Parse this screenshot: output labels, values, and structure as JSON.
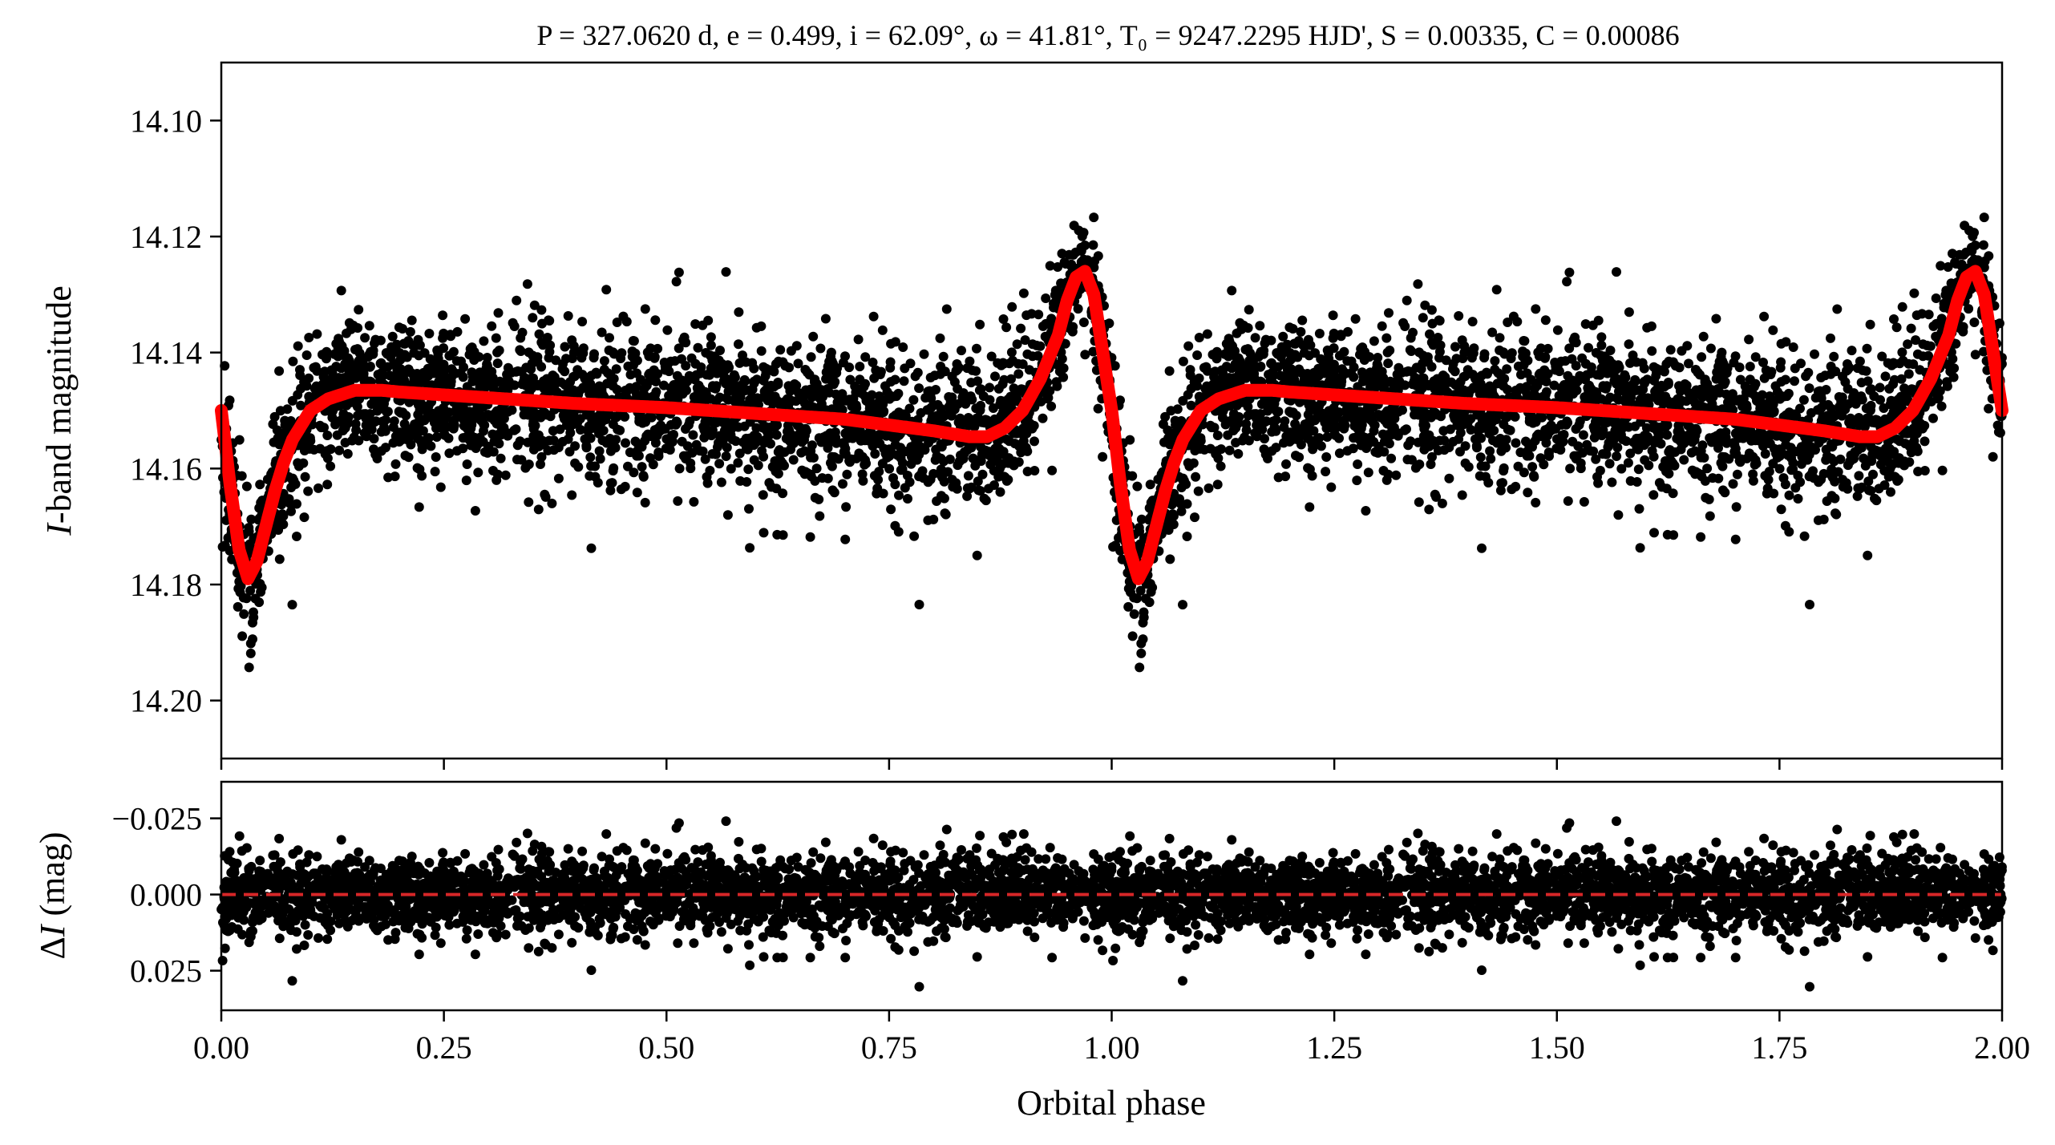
{
  "chart_data": [
    {
      "type": "scatter",
      "panel": "top",
      "title": "P = 327.0620 d, e = 0.499, i = 62.09°, ω = 41.81°, T₀ = 9247.2295 HJD', S = 0.00335, C = 0.00086",
      "xlabel": "",
      "ylabel": "I-band magnitude",
      "xlim": [
        0.0,
        2.0
      ],
      "ylim": [
        14.21,
        14.09
      ],
      "y_inverted": true,
      "yticks": [
        "14.10",
        "14.12",
        "14.14",
        "14.16",
        "14.18",
        "14.20"
      ],
      "ytick_values": [
        14.1,
        14.12,
        14.14,
        14.16,
        14.18,
        14.2
      ],
      "xticks_values": [
        0.0,
        0.25,
        0.5,
        0.75,
        1.0,
        1.25,
        1.5,
        1.75,
        2.0
      ],
      "grid": false,
      "series": [
        {
          "kind": "points",
          "color": "#000000",
          "x": [
            0.0,
            0.01,
            0.02,
            0.03,
            0.04,
            0.05,
            0.07,
            0.1,
            0.15,
            0.2,
            0.3,
            0.4,
            0.5,
            0.6,
            0.7,
            0.8,
            0.86,
            0.9,
            0.93,
            0.95,
            0.96,
            0.97,
            0.98,
            0.99,
            1.0
          ],
          "y": [
            14.15,
            14.163,
            14.175,
            14.181,
            14.178,
            14.17,
            14.16,
            14.152,
            14.147,
            14.147,
            14.148,
            14.149,
            14.149,
            14.15,
            14.151,
            14.153,
            14.154,
            14.15,
            14.142,
            14.133,
            14.128,
            14.126,
            14.13,
            14.138,
            14.15
          ],
          "scatter_sigma": 0.0065
        },
        {
          "kind": "model",
          "color": "#ff0000",
          "x": [
            0.0,
            0.01,
            0.02,
            0.03,
            0.04,
            0.05,
            0.06,
            0.07,
            0.08,
            0.1,
            0.12,
            0.15,
            0.18,
            0.2,
            0.3,
            0.4,
            0.5,
            0.6,
            0.7,
            0.8,
            0.84,
            0.86,
            0.88,
            0.9,
            0.92,
            0.94,
            0.95,
            0.96,
            0.97,
            0.98,
            0.99,
            1.0
          ],
          "y": [
            14.15,
            14.163,
            14.174,
            14.179,
            14.176,
            14.17,
            14.164,
            14.159,
            14.155,
            14.15,
            14.148,
            14.1465,
            14.1465,
            14.1468,
            14.1478,
            14.1488,
            14.1495,
            14.1505,
            14.1515,
            14.1535,
            14.1545,
            14.1545,
            14.153,
            14.15,
            14.1445,
            14.137,
            14.131,
            14.127,
            14.126,
            14.13,
            14.14,
            14.15
          ]
        }
      ]
    },
    {
      "type": "scatter",
      "panel": "bottom",
      "title": "",
      "xlabel": "Orbital phase",
      "ylabel": "ΔI (mag)",
      "xlim": [
        0.0,
        2.0
      ],
      "ylim": [
        0.038,
        -0.037
      ],
      "y_inverted": true,
      "yticks": [
        "−0.025",
        "0.000",
        "0.025"
      ],
      "ytick_values": [
        -0.025,
        0.0,
        0.025
      ],
      "xticks": [
        "0.00",
        "0.25",
        "0.50",
        "0.75",
        "1.00",
        "1.25",
        "1.50",
        "1.75",
        "2.00"
      ],
      "xticks_values": [
        0.0,
        0.25,
        0.5,
        0.75,
        1.0,
        1.25,
        1.5,
        1.75,
        2.0
      ],
      "grid": false,
      "series": [
        {
          "kind": "residuals",
          "color": "#000000",
          "scatter_sigma": 0.0065
        },
        {
          "kind": "zero-line",
          "color": "#d62728",
          "y": 0.0,
          "style": "dashed"
        }
      ]
    }
  ]
}
